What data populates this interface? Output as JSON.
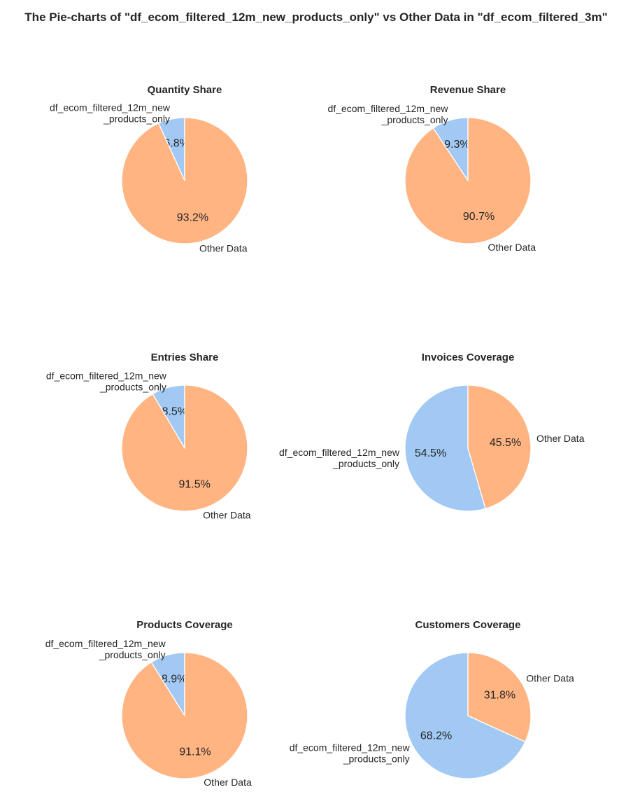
{
  "figure_title": "The Pie-charts of \"df_ecom_filtered_12m_new_products_only\" vs Other Data in \"df_ecom_filtered_3m\"",
  "colors": {
    "series_a": "#a1c9f4",
    "series_b": "#ffb482",
    "text": "#262626",
    "edge": "#ffffff"
  },
  "chart_data": [
    {
      "type": "pie",
      "title": "Quantity Share",
      "labels": [
        "df_ecom_filtered_12m_new\n_products_only",
        "Other Data"
      ],
      "values": [
        6.8,
        93.2
      ],
      "value_labels": [
        "6.8%",
        "93.2%"
      ]
    },
    {
      "type": "pie",
      "title": "Revenue Share",
      "labels": [
        "df_ecom_filtered_12m_new\n_products_only",
        "Other Data"
      ],
      "values": [
        9.3,
        90.7
      ],
      "value_labels": [
        "9.3%",
        "90.7%"
      ]
    },
    {
      "type": "pie",
      "title": "Entries Share",
      "labels": [
        "df_ecom_filtered_12m_new\n_products_only",
        "Other Data"
      ],
      "values": [
        8.5,
        91.5
      ],
      "value_labels": [
        "8.5%",
        "91.5%"
      ]
    },
    {
      "type": "pie",
      "title": "Invoices Coverage",
      "labels": [
        "df_ecom_filtered_12m_new\n_products_only",
        "Other Data"
      ],
      "values": [
        54.5,
        45.5
      ],
      "value_labels": [
        "54.5%",
        "45.5%"
      ]
    },
    {
      "type": "pie",
      "title": "Products Coverage",
      "labels": [
        "df_ecom_filtered_12m_new\n_products_only",
        "Other Data"
      ],
      "values": [
        8.9,
        91.1
      ],
      "value_labels": [
        "8.9%",
        "91.1%"
      ]
    },
    {
      "type": "pie",
      "title": "Customers Coverage",
      "labels": [
        "df_ecom_filtered_12m_new\n_products_only",
        "Other Data"
      ],
      "values": [
        68.2,
        31.8
      ],
      "value_labels": [
        "68.2%",
        "31.8%"
      ]
    }
  ]
}
